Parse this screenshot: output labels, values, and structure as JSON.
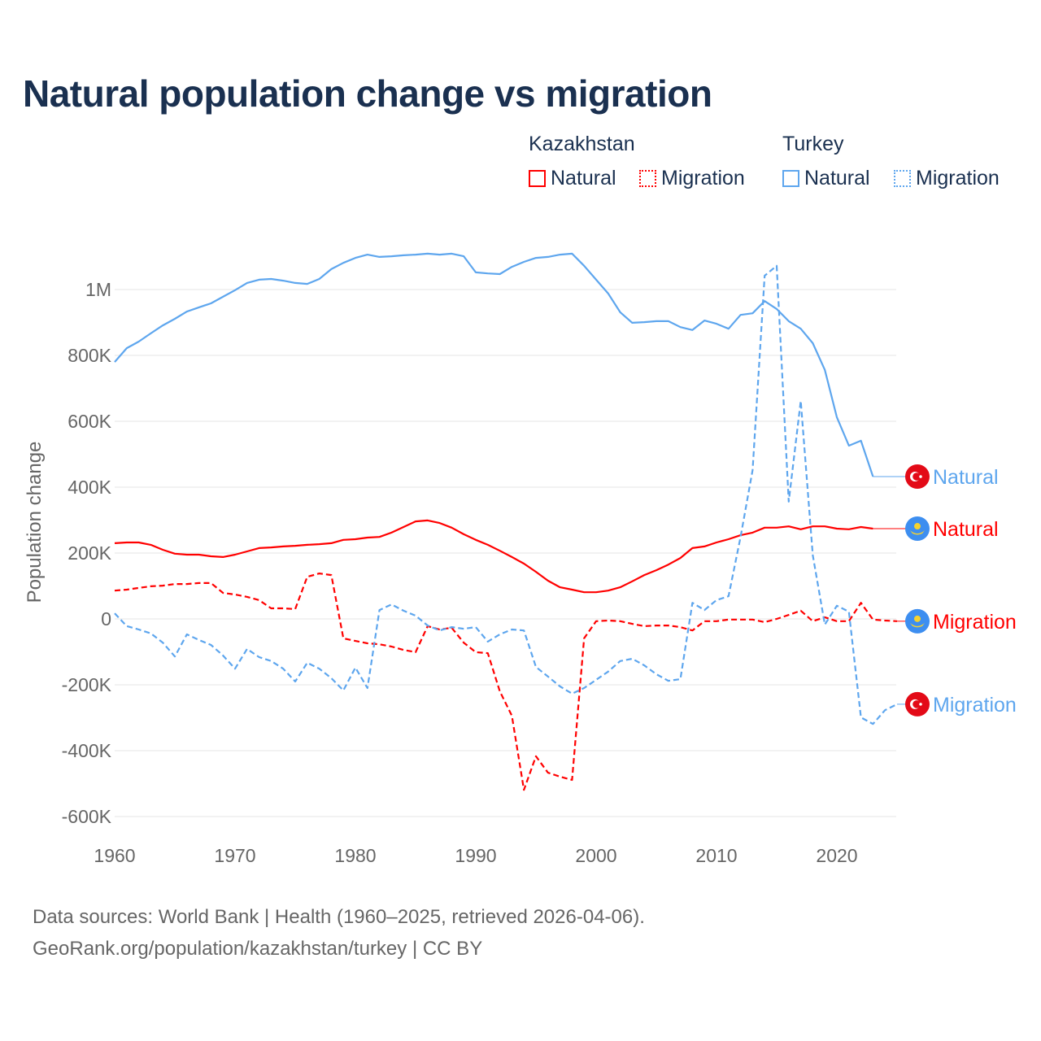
{
  "chart_data": {
    "type": "line",
    "title": "Natural population change vs migration",
    "ylabel": "Population change",
    "xlabel": "",
    "xlim": [
      1960,
      2025
    ],
    "ylim": [
      -600000,
      1100000
    ],
    "x_ticks": [
      1960,
      1970,
      1980,
      1990,
      2000,
      2010,
      2020
    ],
    "y_ticks": [
      -600000,
      -400000,
      -200000,
      0,
      200000,
      400000,
      600000,
      800000,
      1000000
    ],
    "y_tick_labels": [
      "-600K",
      "-400K",
      "-200K",
      "0",
      "200K",
      "400K",
      "600K",
      "800K",
      "1M"
    ],
    "grid": true,
    "legend": {
      "position": "top-right",
      "groups": [
        {
          "label": "Kazakhstan",
          "items": [
            "Natural",
            "Migration"
          ]
        },
        {
          "label": "Turkey",
          "items": [
            "Natural",
            "Migration"
          ]
        }
      ]
    },
    "start_year": 1960,
    "series": [
      {
        "name": "Turkey Natural",
        "country": "Turkey",
        "label": "Natural",
        "color": "#5ea6ee",
        "dash": false,
        "values": [
          780000,
          822000,
          842000,
          867000,
          891000,
          911000,
          933000,
          946000,
          958000,
          978000,
          998000,
          1020000,
          1030000,
          1032000,
          1027000,
          1020000,
          1017000,
          1032000,
          1062000,
          1081000,
          1096000,
          1106000,
          1099000,
          1101000,
          1104000,
          1106000,
          1109000,
          1106000,
          1109000,
          1101000,
          1052000,
          1049000,
          1047000,
          1069000,
          1084000,
          1096000,
          1099000,
          1106000,
          1109000,
          1072000,
          1030000,
          988000,
          931000,
          899000,
          901000,
          904000,
          904000,
          886000,
          877000,
          906000,
          896000,
          881000,
          923000,
          928000,
          965000,
          941000,
          904000,
          881000,
          837000,
          756000,
          612000,
          526000,
          541000,
          432000
        ]
      },
      {
        "name": "Kazakhstan Natural",
        "country": "Kazakhstan",
        "label": "Natural",
        "color": "#ff0000",
        "dash": false,
        "values": [
          230000,
          232000,
          232000,
          225000,
          210000,
          198000,
          195000,
          195000,
          190000,
          188000,
          195000,
          205000,
          215000,
          217000,
          220000,
          222000,
          225000,
          227000,
          230000,
          240000,
          242000,
          247000,
          249000,
          262000,
          279000,
          296000,
          299000,
          291000,
          277000,
          257000,
          240000,
          225000,
          207000,
          188000,
          168000,
          143000,
          116000,
          96000,
          89000,
          81000,
          81000,
          86000,
          96000,
          114000,
          133000,
          148000,
          165000,
          185000,
          215000,
          220000,
          232000,
          242000,
          254000,
          262000,
          277000,
          277000,
          281000,
          272000,
          281000,
          281000,
          274000,
          272000,
          279000,
          274000
        ]
      },
      {
        "name": "Kazakhstan Migration",
        "country": "Kazakhstan",
        "label": "Migration",
        "color": "#ff0000",
        "dash": true,
        "values": [
          86000,
          89000,
          94000,
          99000,
          101000,
          106000,
          106000,
          109000,
          109000,
          79000,
          74000,
          67000,
          57000,
          32000,
          32000,
          30000,
          128000,
          138000,
          133000,
          -59000,
          -67000,
          -74000,
          -77000,
          -84000,
          -94000,
          -101000,
          -22000,
          -32000,
          -27000,
          -72000,
          -101000,
          -104000,
          -220000,
          -294000,
          -519000,
          -417000,
          -467000,
          -479000,
          -489000,
          -59000,
          -7000,
          -5000,
          -7000,
          -15000,
          -22000,
          -20000,
          -20000,
          -25000,
          -35000,
          -7000,
          -7000,
          -2000,
          -2000,
          -2000,
          -10000,
          0,
          12000,
          25000,
          -7000,
          5000,
          -7000,
          -7000,
          49000,
          -2000,
          -5000,
          -7000
        ]
      },
      {
        "name": "Turkey Migration",
        "country": "Turkey",
        "label": "Migration",
        "color": "#5ea6ee",
        "dash": true,
        "values": [
          17000,
          -22000,
          -32000,
          -44000,
          -72000,
          -114000,
          -47000,
          -64000,
          -79000,
          -111000,
          -151000,
          -91000,
          -116000,
          -128000,
          -151000,
          -190000,
          -133000,
          -151000,
          -180000,
          -217000,
          -148000,
          -210000,
          27000,
          44000,
          25000,
          10000,
          -20000,
          -35000,
          -25000,
          -30000,
          -25000,
          -69000,
          -47000,
          -32000,
          -35000,
          -146000,
          -175000,
          -205000,
          -227000,
          -210000,
          -185000,
          -160000,
          -128000,
          -121000,
          -141000,
          -168000,
          -188000,
          -183000,
          49000,
          27000,
          57000,
          69000,
          249000,
          452000,
          1042000,
          1072000,
          356000,
          662000,
          193000,
          -17000,
          40000,
          22000,
          -299000,
          -319000,
          -277000,
          -259000
        ]
      }
    ]
  },
  "legend_labels": {
    "kazakhstan": "Kazakhstan",
    "turkey": "Turkey",
    "natural": "Natural",
    "migration": "Migration"
  },
  "footer": {
    "line1": "Data sources: World Bank | Health (1960–2025, retrieved 2026-04-06).",
    "line2": "GeoRank.org/population/kazakhstan/turkey | CC BY"
  }
}
